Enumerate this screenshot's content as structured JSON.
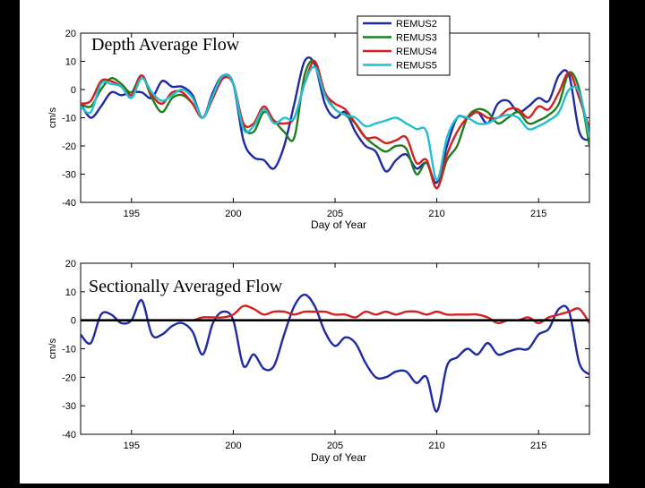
{
  "chart_data": [
    {
      "type": "line",
      "title": "Depth Average Flow",
      "xlabel": "Day of Year",
      "ylabel": "cm/s",
      "xlim": [
        192.5,
        217.5
      ],
      "ylim": [
        -40,
        20
      ],
      "xticks": [
        "195",
        "200",
        "205",
        "210",
        "215"
      ],
      "yticks": [
        "20",
        "10",
        "0",
        "-10",
        "-20",
        "-30",
        "-40"
      ],
      "legend_position": "top-right",
      "series": [
        {
          "name": "REMUS2",
          "color": "#1f2aa6",
          "x": [
            192.5,
            193,
            193.5,
            194,
            194.5,
            195,
            195.5,
            196,
            196.5,
            197,
            197.5,
            198,
            198.5,
            199,
            199.5,
            200,
            200.5,
            201,
            201.5,
            202,
            202.5,
            203,
            203.5,
            204,
            204.5,
            205,
            205.5,
            206,
            206.5,
            207,
            207.5,
            208,
            208.5,
            209,
            209.5,
            210,
            210.5,
            211,
            211.5,
            212,
            212.5,
            213,
            213.5,
            214,
            214.5,
            215,
            215.5,
            216,
            216.5,
            217,
            217.5
          ],
          "y": [
            -5,
            -10,
            -6,
            -1,
            -2,
            -1,
            -1,
            -3,
            3,
            1,
            1,
            -2,
            -10,
            -1,
            5,
            2,
            -18,
            -24,
            -25,
            -28,
            -20,
            -5,
            10,
            9,
            -5,
            -10,
            -8,
            -15,
            -20,
            -22,
            -29,
            -25,
            -23,
            -28,
            -26,
            -33,
            -20,
            -10,
            -10,
            -8,
            -12,
            -5,
            -4,
            -8,
            -6,
            -3,
            -4,
            5,
            5,
            -15,
            -18
          ]
        },
        {
          "name": "REMUS3",
          "color": "#1f7f1f",
          "x": [
            192.5,
            193,
            193.5,
            194,
            194.5,
            195,
            195.5,
            196,
            196.5,
            197,
            197.5,
            198,
            198.5,
            199,
            199.5,
            200,
            200.5,
            201,
            201.5,
            202,
            202.5,
            203,
            203.5,
            204,
            204.5,
            205,
            205.5,
            206,
            206.5,
            207,
            207.5,
            208,
            208.5,
            209,
            209.5,
            210,
            210.5,
            211,
            211.5,
            212,
            212.5,
            213,
            213.5,
            214,
            214.5,
            215,
            215.5,
            216,
            216.5,
            217,
            217.5
          ],
          "y": [
            -5,
            -6,
            0,
            4,
            2,
            -1,
            5,
            -3,
            -8,
            -3,
            -2,
            -5,
            -10,
            -3,
            4,
            2,
            -13,
            -15,
            -8,
            -11,
            -15,
            -17,
            5,
            10,
            -1,
            -7,
            -9,
            -12,
            -17,
            -20,
            -22,
            -20,
            -21,
            -30,
            -26,
            -35,
            -25,
            -20,
            -10,
            -7,
            -8,
            -12,
            -10,
            -8,
            -12,
            -11,
            -9,
            -5,
            6,
            0,
            -20
          ]
        },
        {
          "name": "REMUS4",
          "color": "#d42020",
          "x": [
            192.5,
            193,
            193.5,
            194,
            194.5,
            195,
            195.5,
            196,
            196.5,
            197,
            197.5,
            198,
            198.5,
            199,
            199.5,
            200,
            200.5,
            201,
            201.5,
            202,
            202.5,
            203,
            203.5,
            204,
            204.5,
            205,
            205.5,
            206,
            206.5,
            207,
            207.5,
            208,
            208.5,
            209,
            209.5,
            210,
            210.5,
            211,
            211.5,
            212,
            212.5,
            213,
            213.5,
            214,
            214.5,
            215,
            215.5,
            216,
            216.5,
            217,
            217.5
          ],
          "y": [
            -5,
            -4,
            3,
            3,
            1,
            -2,
            5,
            -2,
            -5,
            -1,
            -1,
            -5,
            -10,
            -3,
            4,
            2,
            -12,
            -12,
            -6,
            -11,
            -12,
            -10,
            2,
            10,
            -1,
            -5,
            -7,
            -12,
            -17,
            -17,
            -19,
            -18,
            -17,
            -26,
            -25,
            -35,
            -23,
            -15,
            -10,
            -8,
            -10,
            -10,
            -7,
            -7,
            -10,
            -6,
            -7,
            -1,
            6,
            -3,
            -14
          ]
        },
        {
          "name": "REMUS5",
          "color": "#20c0d0",
          "x": [
            192.5,
            193,
            193.5,
            194,
            194.5,
            195,
            195.5,
            196,
            196.5,
            197,
            197.5,
            198,
            198.5,
            199,
            199.5,
            200,
            200.5,
            201,
            201.5,
            202,
            202.5,
            203,
            203.5,
            204,
            204.5,
            205,
            205.5,
            206,
            206.5,
            207,
            207.5,
            208,
            208.5,
            209,
            209.5,
            210,
            210.5,
            211,
            211.5,
            212,
            212.5,
            213,
            213.5,
            214,
            214.5,
            215,
            215.5,
            216,
            216.5,
            217,
            217.5
          ],
          "y": [
            -6,
            -8,
            2,
            2,
            1,
            -3,
            4,
            -1,
            -4,
            -2,
            0,
            -3,
            -10,
            -2,
            5,
            2,
            -14,
            -13,
            -7,
            -12,
            -10,
            -10,
            2,
            8,
            -2,
            -7,
            -9,
            -10,
            -13,
            -12,
            -11,
            -10,
            -12,
            -14,
            -15,
            -32,
            -17,
            -10,
            -10,
            -12,
            -12,
            -10,
            -9,
            -10,
            -14,
            -13,
            -11,
            -8,
            0,
            -1,
            -17
          ]
        }
      ]
    },
    {
      "type": "line",
      "title": "Sectionally Averaged Flow",
      "xlabel": "Day of Year",
      "ylabel": "cm/s",
      "xlim": [
        192.5,
        217.5
      ],
      "ylim": [
        -40,
        20
      ],
      "xticks": [
        "195",
        "200",
        "205",
        "210",
        "215"
      ],
      "yticks": [
        "20",
        "10",
        "0",
        "-10",
        "-20",
        "-30",
        "-40"
      ],
      "series": [
        {
          "color": "#1f2aa6",
          "x": [
            192.5,
            193,
            193.5,
            194,
            194.5,
            195,
            195.5,
            196,
            196.5,
            197,
            197.5,
            198,
            198.5,
            199,
            199.5,
            200,
            200.5,
            201,
            201.5,
            202,
            202.5,
            203,
            203.5,
            204,
            204.5,
            205,
            205.5,
            206,
            206.5,
            207,
            207.5,
            208,
            208.5,
            209,
            209.5,
            210,
            210.5,
            211,
            211.5,
            212,
            212.5,
            213,
            213.5,
            214,
            214.5,
            215,
            215.5,
            216,
            216.5,
            217,
            217.5
          ],
          "y": [
            -5,
            -8,
            2,
            2,
            -1,
            0,
            7,
            -5,
            -5,
            -2,
            -1,
            -4,
            -12,
            -1,
            3,
            0,
            -16,
            -12,
            -17,
            -16,
            -5,
            5,
            9,
            5,
            -4,
            -9,
            -6,
            -8,
            -15,
            -20,
            -20,
            -18,
            -18,
            -22,
            -20,
            -32,
            -16,
            -13,
            -10,
            -12,
            -8,
            -12,
            -11,
            -10,
            -10,
            -5,
            -3,
            4,
            3,
            -15,
            -19
          ]
        },
        {
          "color": "#d42020",
          "x": [
            192.5,
            193,
            193.5,
            194,
            194.5,
            195,
            195.5,
            196,
            196.5,
            197,
            197.5,
            198,
            198.5,
            199,
            199.5,
            200,
            200.5,
            201,
            201.5,
            202,
            202.5,
            203,
            203.5,
            204,
            204.5,
            205,
            205.5,
            206,
            206.5,
            207,
            207.5,
            208,
            208.5,
            209,
            209.5,
            210,
            210.5,
            211,
            211.5,
            212,
            212.5,
            213,
            213.5,
            214,
            214.5,
            215,
            215.5,
            216,
            216.5,
            217,
            217.5
          ],
          "y": [
            0,
            0,
            0,
            0,
            0,
            0,
            0,
            0,
            0,
            0,
            0,
            0,
            1,
            1,
            1,
            2,
            5,
            4,
            2,
            3,
            3,
            2,
            3,
            3,
            3,
            2,
            2,
            1,
            3,
            2,
            3,
            2,
            3,
            3,
            2,
            3,
            2,
            2,
            2,
            2,
            1,
            -1,
            0,
            0,
            1,
            -1,
            1,
            2,
            3,
            4,
            -1
          ]
        },
        {
          "color": "#000000",
          "x": [
            192.5,
            217.5
          ],
          "y": [
            0,
            0
          ]
        }
      ]
    }
  ]
}
